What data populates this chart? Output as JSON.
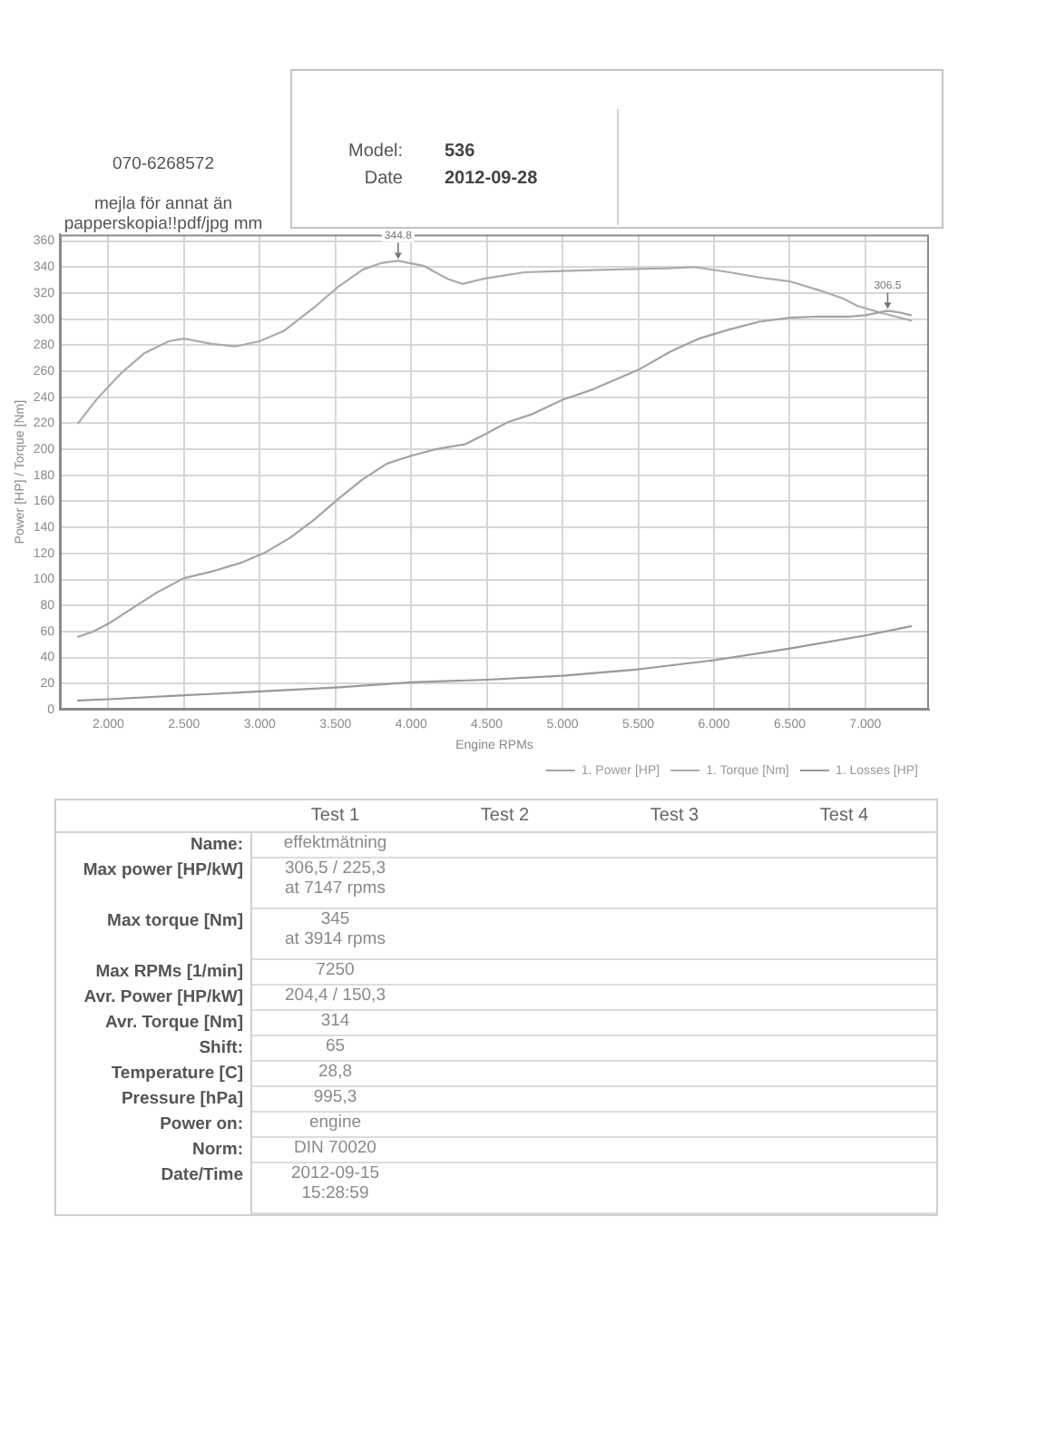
{
  "chart_data": {
    "type": "line",
    "xlabel": "Engine RPMs",
    "ylabel": "Power [HP] / Torque [Nm]",
    "xlim": [
      1680,
      7420
    ],
    "ylim": [
      0,
      365
    ],
    "xticks": [
      {
        "value": 2000,
        "label": "2.000"
      },
      {
        "value": 2500,
        "label": "2.500"
      },
      {
        "value": 3000,
        "label": "3.000"
      },
      {
        "value": 3500,
        "label": "3.500"
      },
      {
        "value": 4000,
        "label": "4.000"
      },
      {
        "value": 4500,
        "label": "4.500"
      },
      {
        "value": 5000,
        "label": "5.000"
      },
      {
        "value": 5500,
        "label": "5.500"
      },
      {
        "value": 6000,
        "label": "6.000"
      },
      {
        "value": 6500,
        "label": "6.500"
      },
      {
        "value": 7000,
        "label": "7.000"
      }
    ],
    "yticks": [
      0,
      20,
      40,
      60,
      80,
      100,
      120,
      140,
      160,
      180,
      200,
      220,
      240,
      260,
      280,
      300,
      320,
      340,
      360
    ],
    "grid": true,
    "legend": "bottom right",
    "series": [
      {
        "name": "1. Power [HP]",
        "color": "#a3a3a3",
        "x": [
          1800,
          1900,
          2000,
          2160,
          2320,
          2500,
          2680,
          2880,
          3040,
          3200,
          3360,
          3520,
          3680,
          3840,
          4000,
          4160,
          4360,
          4480,
          4640,
          4800,
          5000,
          5200,
          5500,
          5712,
          5900,
          6100,
          6300,
          6500,
          6700,
          6900,
          7000,
          7147,
          7232,
          7300
        ],
        "values": [
          56,
          60,
          66,
          78,
          90,
          101,
          106,
          113,
          121,
          132,
          146,
          162,
          177,
          189,
          195,
          200,
          204,
          211,
          221,
          227,
          238,
          246,
          261,
          275,
          285,
          292,
          298,
          301,
          302,
          302,
          303,
          306.5,
          305,
          303
        ]
      },
      {
        "name": "1. Torque [Nm]",
        "color": "#ababab",
        "x": [
          1800,
          1920,
          2080,
          2240,
          2400,
          2500,
          2680,
          2840,
          3000,
          3160,
          3360,
          3520,
          3680,
          3800,
          3914,
          4080,
          4240,
          4340,
          4480,
          4640,
          4750,
          5000,
          5300,
          5700,
          5872,
          6100,
          6300,
          6500,
          6700,
          6850,
          6950,
          7100,
          7232,
          7300
        ],
        "values": [
          220,
          238,
          258,
          274,
          283,
          285,
          281,
          279,
          283,
          291,
          309,
          325,
          338,
          343,
          344.8,
          341,
          331,
          327,
          331,
          334,
          336,
          337,
          338,
          339,
          340,
          336,
          332,
          329,
          322,
          316,
          310,
          305,
          301,
          299
        ]
      },
      {
        "name": "1. Losses [HP]",
        "color": "#999999",
        "x": [
          1800,
          2000,
          2500,
          3000,
          3500,
          4000,
          4500,
          5000,
          5500,
          6000,
          6500,
          7000,
          7300
        ],
        "values": [
          7,
          8,
          11,
          14,
          17,
          21,
          23,
          26,
          31,
          38,
          47,
          57,
          64
        ]
      }
    ],
    "annotations": [
      {
        "text": "344.8",
        "x": 3914,
        "y": 344.8
      },
      {
        "text": "306.5",
        "x": 7147,
        "y": 306.5
      },
      "070-6268572",
      "mejla för annat än papperskopia!!pdf/jpg mm",
      "Model:",
      "536",
      "Date",
      "2012-09-28",
      "Test 1",
      "Test 2",
      "Test 3",
      "Test 4",
      "Name:",
      "effektmätning",
      "Max power [HP/kW]",
      "306,5 / 225,3\nat 7147 rpms",
      "Max torque [Nm]",
      "345\nat 3914 rpms",
      "Max RPMs [1/min]",
      "7250",
      "Avr. Power [HP/kW]",
      "204,4 / 150,3",
      "Avr. Torque [Nm]",
      "314",
      "Shift:",
      "65",
      "Temperature [C]",
      "28,8",
      "Pressure [hPa]",
      "995,3",
      "Power on:",
      "engine",
      "Norm:",
      "DIN 70020",
      "Date/Time",
      "2012-09-15\n15:28:59"
    ]
  }
}
